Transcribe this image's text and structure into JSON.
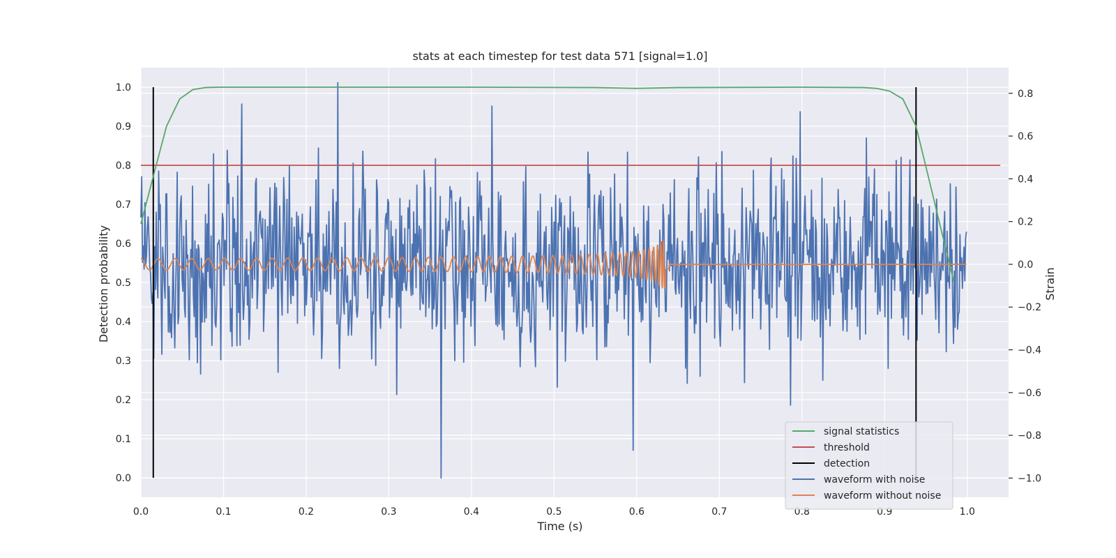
{
  "chart_data": {
    "type": "line",
    "title": "stats at each timestep for test data 571 [signal=1.0]",
    "xlabel": "Time (s)",
    "ylabel": "Detection probability",
    "y2label": "Strain",
    "xlim": [
      0.0,
      1.05
    ],
    "ylim": [
      -0.05,
      1.05
    ],
    "y2lim": [
      -1.09,
      0.92
    ],
    "xticks": [
      "0.0",
      "0.1",
      "0.2",
      "0.3",
      "0.4",
      "0.5",
      "0.6",
      "0.7",
      "0.8",
      "0.9",
      "1.0"
    ],
    "yticks": [
      "0.0",
      "0.1",
      "0.2",
      "0.3",
      "0.4",
      "0.5",
      "0.6",
      "0.7",
      "0.8",
      "0.9",
      "1.0"
    ],
    "y2ticks": [
      "−1.0",
      "−0.8",
      "−0.6",
      "−0.4",
      "−0.2",
      "0.0",
      "0.2",
      "0.4",
      "0.6",
      "0.8"
    ],
    "grid": true,
    "legend_position": "lower-right",
    "series": [
      {
        "name": "signal statistics",
        "axis": "left",
        "color": "#55a868",
        "x": [
          0.0,
          0.016,
          0.031,
          0.047,
          0.063,
          0.078,
          0.094,
          0.2,
          0.4,
          0.55,
          0.6,
          0.65,
          0.8,
          0.875,
          0.89,
          0.906,
          0.922,
          0.938,
          0.953,
          0.969,
          0.984
        ],
        "y": [
          0.65,
          0.78,
          0.9,
          0.97,
          0.994,
          0.999,
          1.0,
          1.0,
          1.0,
          0.999,
          0.997,
          0.999,
          1.0,
          0.999,
          0.997,
          0.99,
          0.97,
          0.9,
          0.77,
          0.63,
          0.5
        ]
      },
      {
        "name": "threshold",
        "axis": "left",
        "color": "#c44e52",
        "x": [
          0.0,
          1.04
        ],
        "y": [
          0.8,
          0.8
        ]
      },
      {
        "name": "detection",
        "axis": "left",
        "color": "#000000",
        "x": [
          0.015,
          0.938
        ],
        "y_range": [
          0.0,
          1.0
        ]
      },
      {
        "name": "waveform with noise",
        "axis": "right",
        "color": "#4c72b0",
        "samples": 1024,
        "x_start": 0.0,
        "x_end": 0.999,
        "seed": 571,
        "sigma": 0.22,
        "peaks": [
          [
            0.238,
            0.85
          ],
          [
            0.363,
            -1.0
          ],
          [
            0.596,
            -0.87
          ],
          [
            0.122,
            0.75
          ],
          [
            0.425,
            0.74
          ]
        ]
      },
      {
        "name": "waveform without noise",
        "axis": "right",
        "color": "#dd8452",
        "x_start": 0.0,
        "x_end": 0.999,
        "merger_time": 0.635,
        "base_amplitude": 0.026,
        "peak_amplitude": 0.11,
        "base_frequency": 45
      }
    ]
  }
}
